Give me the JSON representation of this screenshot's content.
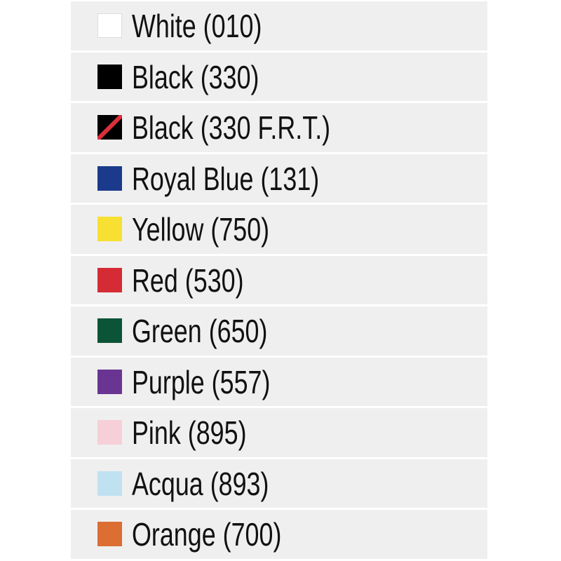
{
  "colors": [
    {
      "label": "White (010)",
      "color": "#ffffff",
      "border": "#dddddd"
    },
    {
      "label": "Black (330)",
      "color": "#000000"
    },
    {
      "label": "Black (330 F.R.T.)",
      "color": "#000000",
      "stripe": "#d9303a"
    },
    {
      "label": "Royal Blue (131)",
      "color": "#1b3a8c"
    },
    {
      "label": "Yellow (750)",
      "color": "#f7e032"
    },
    {
      "label": "Red (530)",
      "color": "#d52b34"
    },
    {
      "label": "Green (650)",
      "color": "#0c5438"
    },
    {
      "label": "Purple (557)",
      "color": "#6a3592"
    },
    {
      "label": "Pink (895)",
      "color": "#f7cfd8"
    },
    {
      "label": "Acqua (893)",
      "color": "#bfe1f0"
    },
    {
      "label": "Orange (700)",
      "color": "#dc6d33"
    }
  ]
}
